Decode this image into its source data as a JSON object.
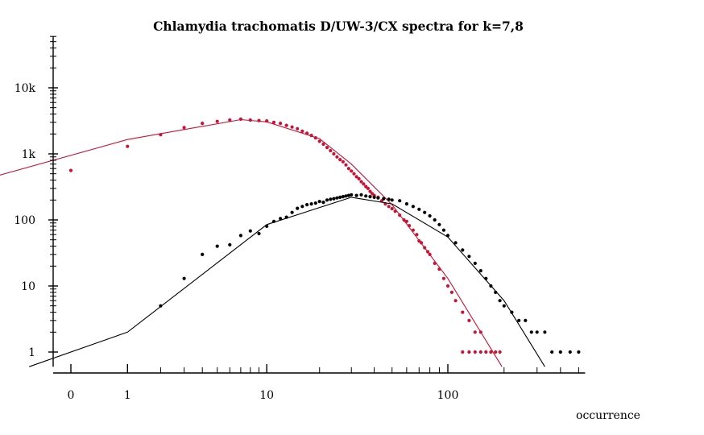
{
  "chart_data": {
    "type": "scatter",
    "title": "Chlamydia trachomatis D/UW-3/CX spectra for k=7,8",
    "xlabel": "occurrence",
    "ylabel": "",
    "x_scale": "log (0 shown at left, offset by one)",
    "y_scale": "log",
    "xlim": [
      0,
      500
    ],
    "ylim": [
      0.6,
      60000
    ],
    "grid": false,
    "x_ticks": [
      {
        "value": 0,
        "label": "0"
      },
      {
        "value": 1,
        "label": "1"
      },
      {
        "value": 10,
        "label": "10"
      },
      {
        "value": 100,
        "label": "100"
      }
    ],
    "y_ticks": [
      {
        "value": 1,
        "label": "1"
      },
      {
        "value": 10,
        "label": "10"
      },
      {
        "value": 100,
        "label": "100"
      },
      {
        "value": 1000,
        "label": "1k"
      },
      {
        "value": 10000,
        "label": "10k"
      }
    ],
    "series": [
      {
        "color": "#cc1133",
        "points": [
          [
            0,
            560
          ],
          [
            1,
            1300
          ],
          [
            2,
            1950
          ],
          [
            3,
            2500
          ],
          [
            4,
            2900
          ],
          [
            5,
            3100
          ],
          [
            6,
            3250
          ],
          [
            7,
            3350
          ],
          [
            8,
            3250
          ],
          [
            9,
            3200
          ],
          [
            10,
            3150
          ],
          [
            11,
            3000
          ],
          [
            12,
            2900
          ],
          [
            13,
            2700
          ],
          [
            14,
            2550
          ],
          [
            15,
            2400
          ],
          [
            16,
            2200
          ],
          [
            17,
            2050
          ],
          [
            18,
            1900
          ],
          [
            19,
            1750
          ],
          [
            20,
            1550
          ],
          [
            21,
            1400
          ],
          [
            22,
            1250
          ],
          [
            23,
            1120
          ],
          [
            24,
            1000
          ],
          [
            25,
            900
          ],
          [
            26,
            820
          ],
          [
            27,
            760
          ],
          [
            28,
            680
          ],
          [
            29,
            600
          ],
          [
            30,
            550
          ],
          [
            31,
            500
          ],
          [
            32,
            450
          ],
          [
            33,
            420
          ],
          [
            34,
            380
          ],
          [
            35,
            350
          ],
          [
            36,
            320
          ],
          [
            37,
            300
          ],
          [
            38,
            270
          ],
          [
            39,
            250
          ],
          [
            40,
            235
          ],
          [
            42,
            220
          ],
          [
            44,
            195
          ],
          [
            46,
            175
          ],
          [
            48,
            160
          ],
          [
            50,
            148
          ],
          [
            52,
            135
          ],
          [
            55,
            118
          ],
          [
            58,
            100
          ],
          [
            60,
            95
          ],
          [
            62,
            82
          ],
          [
            65,
            70
          ],
          [
            68,
            60
          ],
          [
            70,
            48
          ],
          [
            72,
            45
          ],
          [
            75,
            38
          ],
          [
            78,
            33
          ],
          [
            80,
            30
          ],
          [
            85,
            22
          ],
          [
            90,
            18
          ],
          [
            95,
            13
          ],
          [
            100,
            10
          ],
          [
            105,
            8
          ],
          [
            110,
            6
          ],
          [
            120,
            4
          ],
          [
            130,
            3
          ],
          [
            140,
            2
          ],
          [
            150,
            2
          ],
          [
            120,
            1
          ],
          [
            130,
            1
          ],
          [
            140,
            1
          ],
          [
            150,
            1
          ],
          [
            160,
            1
          ],
          [
            170,
            1
          ],
          [
            180,
            1
          ],
          [
            190,
            1
          ]
        ],
        "fit_line": [
          [
            -0.6,
            460
          ],
          [
            1,
            1650
          ],
          [
            7,
            3300
          ],
          [
            10,
            3050
          ],
          [
            20,
            1700
          ],
          [
            30,
            700
          ],
          [
            50,
            170
          ],
          [
            100,
            13
          ],
          [
            195,
            0.6
          ]
        ]
      },
      {
        "color": "#000000",
        "points": [
          [
            2,
            5
          ],
          [
            3,
            13
          ],
          [
            4,
            30
          ],
          [
            5,
            40
          ],
          [
            6,
            42
          ],
          [
            7,
            58
          ],
          [
            8,
            68
          ],
          [
            9,
            62
          ],
          [
            10,
            80
          ],
          [
            11,
            95
          ],
          [
            12,
            105
          ],
          [
            13,
            110
          ],
          [
            14,
            130
          ],
          [
            15,
            150
          ],
          [
            16,
            160
          ],
          [
            17,
            170
          ],
          [
            18,
            175
          ],
          [
            19,
            180
          ],
          [
            20,
            190
          ],
          [
            21,
            185
          ],
          [
            22,
            200
          ],
          [
            23,
            205
          ],
          [
            24,
            210
          ],
          [
            25,
            215
          ],
          [
            26,
            220
          ],
          [
            27,
            225
          ],
          [
            28,
            230
          ],
          [
            29,
            235
          ],
          [
            30,
            240
          ],
          [
            32,
            235
          ],
          [
            34,
            240
          ],
          [
            36,
            230
          ],
          [
            38,
            225
          ],
          [
            40,
            220
          ],
          [
            42,
            215
          ],
          [
            45,
            210
          ],
          [
            48,
            205
          ],
          [
            50,
            200
          ],
          [
            55,
            195
          ],
          [
            60,
            175
          ],
          [
            65,
            160
          ],
          [
            70,
            145
          ],
          [
            75,
            130
          ],
          [
            80,
            115
          ],
          [
            85,
            100
          ],
          [
            90,
            85
          ],
          [
            95,
            70
          ],
          [
            100,
            58
          ],
          [
            110,
            45
          ],
          [
            120,
            35
          ],
          [
            130,
            28
          ],
          [
            140,
            22
          ],
          [
            150,
            17
          ],
          [
            160,
            13
          ],
          [
            170,
            10
          ],
          [
            180,
            8
          ],
          [
            190,
            6
          ],
          [
            200,
            5
          ],
          [
            220,
            4
          ],
          [
            240,
            3
          ],
          [
            260,
            3
          ],
          [
            280,
            2
          ],
          [
            300,
            2
          ],
          [
            330,
            2
          ],
          [
            360,
            1
          ],
          [
            400,
            1
          ],
          [
            450,
            1
          ],
          [
            500,
            1
          ]
        ],
        "fit_line": [
          [
            -0.4,
            0.6
          ],
          [
            1,
            2
          ],
          [
            10,
            85
          ],
          [
            30,
            220
          ],
          [
            50,
            175
          ],
          [
            100,
            55
          ],
          [
            200,
            6
          ],
          [
            330,
            0.6
          ]
        ]
      }
    ]
  }
}
